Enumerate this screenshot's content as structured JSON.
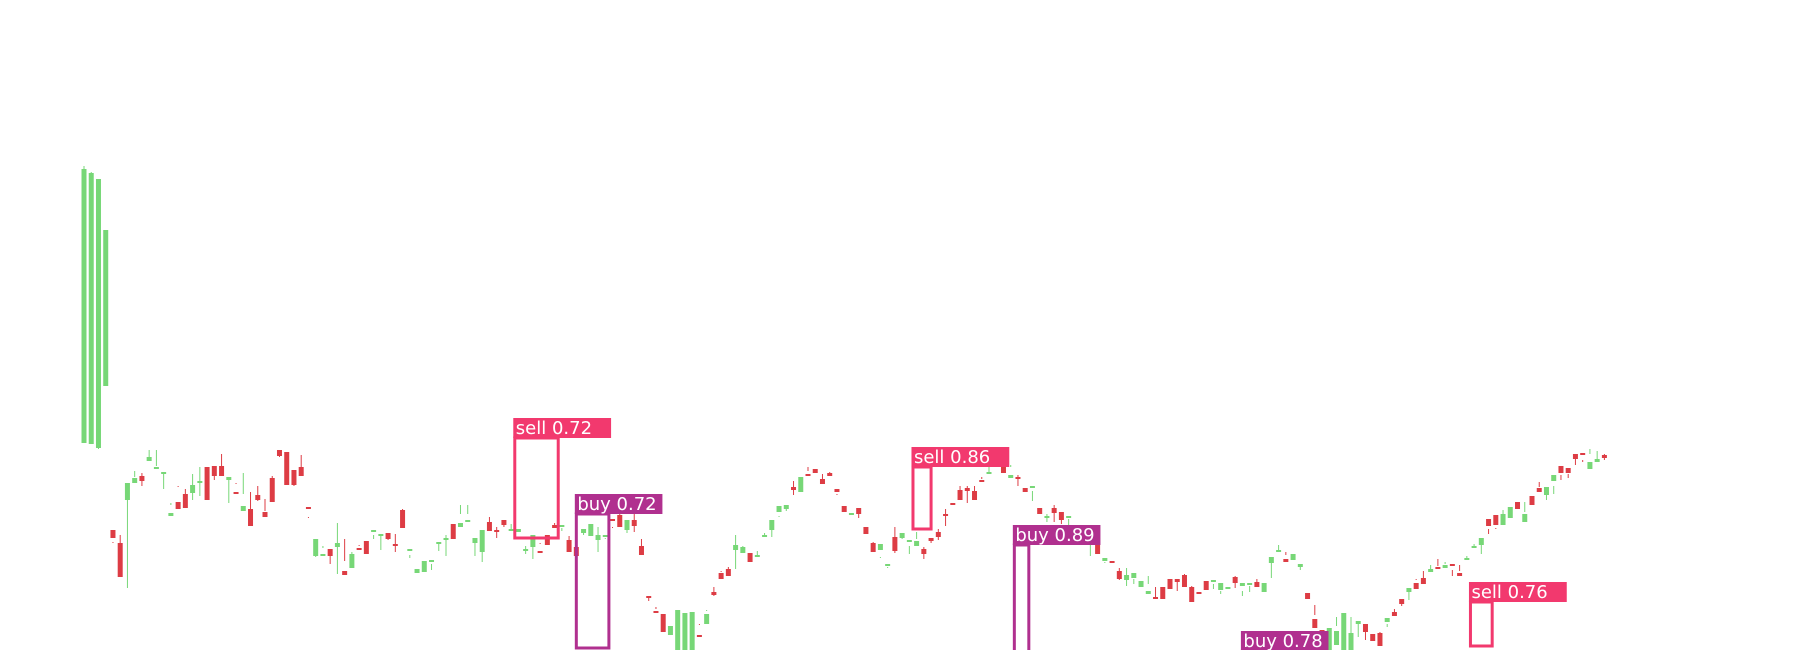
{
  "chart_data": {
    "type": "candlestick",
    "title": "",
    "xlabel": "",
    "ylabel": "",
    "axes_visible": false,
    "grid": false,
    "colors": {
      "up": "#77d777",
      "down": "#dd3c44",
      "sell": "#f2396e",
      "buy": "#b0308f"
    },
    "ylim": [
      0,
      650
    ],
    "candles": [
      [
        207,
        211,
        484,
        481
      ],
      [
        206,
        207,
        478,
        477
      ],
      [
        202,
        201,
        471,
        471
      ],
      [
        264,
        264,
        419,
        420
      ],
      [
        120,
        107,
        108,
        112
      ],
      [
        107,
        102,
        115,
        73
      ],
      [
        150,
        158,
        62,
        167
      ],
      [
        167,
        179,
        173,
        172
      ],
      [
        174,
        177,
        164,
        169
      ],
      [
        189,
        200,
        190,
        193
      ],
      [
        183,
        200,
        184,
        183
      ],
      [
        176,
        161,
        178,
        178
      ],
      [
        134,
        147,
        145,
        137
      ],
      [
        148,
        164,
        163,
        141
      ],
      [
        156,
        154,
        161,
        142
      ],
      [
        157,
        176,
        150,
        165
      ],
      [
        168,
        183,
        154,
        169
      ],
      [
        183,
        162,
        183,
        150
      ],
      [
        184,
        170,
        177,
        174
      ],
      [
        184,
        176,
        196,
        174
      ],
      [
        170,
        147,
        171,
        173
      ],
      [
        158,
        167,
        166,
        156
      ],
      [
        139,
        156,
        177,
        144
      ],
      [
        141,
        130,
        158,
        124
      ],
      [
        155,
        149,
        164,
        150
      ],
      [
        138,
        139,
        151,
        133
      ],
      [
        172,
        156,
        174,
        148
      ],
      [
        200,
        193,
        196,
        194
      ],
      [
        198,
        191,
        183,
        165
      ],
      [
        180,
        164,
        168,
        165
      ],
      [
        183,
        175,
        195,
        174
      ],
      [
        143,
        132,
        133,
        141
      ],
      [
        94,
        98,
        93,
        111
      ],
      [
        96,
        102,
        104,
        96
      ],
      [
        101,
        86,
        101,
        94
      ],
      [
        103,
        76,
        127,
        107
      ],
      [
        79,
        89,
        111,
        75
      ],
      [
        82,
        82,
        98,
        96
      ],
      [
        102,
        105,
        104,
        101
      ],
      [
        109,
        98,
        106,
        96
      ],
      [
        120,
        111,
        115,
        120
      ],
      [
        114,
        100,
        116,
        116
      ],
      [
        117,
        110,
        117,
        111
      ],
      [
        106,
        98,
        116,
        105
      ],
      [
        140,
        124,
        141,
        122
      ],
      [
        101,
        92,
        95,
        101
      ],
      [
        77,
        77,
        79,
        81
      ],
      [
        78,
        89,
        87,
        89
      ],
      [
        89,
        80,
        86,
        90
      ],
      [
        107,
        99,
        108,
        108
      ],
      [
        111,
        94,
        115,
        112
      ],
      [
        126,
        117,
        121,
        111
      ],
      [
        123,
        136,
        145,
        127
      ],
      [
        128,
        136,
        145,
        130
      ],
      [
        107,
        94,
        110,
        112
      ],
      [
        98,
        88,
        111,
        120
      ],
      [
        128,
        133,
        125,
        119
      ],
      [
        120,
        112,
        123,
        118
      ],
      [
        130,
        125,
        123,
        125
      ],
      [
        120,
        119,
        126,
        121
      ],
      [
        118,
        121,
        120,
        121
      ],
      [
        101,
        104,
        96,
        101
      ],
      [
        103,
        91,
        114,
        115
      ],
      [
        99,
        107,
        106,
        97
      ],
      [
        115,
        114,
        107,
        105
      ],
      [
        125,
        124,
        127,
        122
      ],
      [
        125,
        122,
        119,
        125
      ],
      [
        110,
        106,
        114,
        98
      ],
      [
        103,
        95,
        101,
        94
      ],
      [
        117,
        115,
        120,
        121
      ],
      [
        114,
        126,
        116,
        126
      ],
      [
        110,
        98,
        123,
        115
      ],
      [
        115,
        112,
        111,
        115
      ],
      [
        131,
        122,
        123,
        130
      ],
      [
        135,
        125,
        141,
        123
      ],
      [
        120,
        127,
        117,
        130
      ],
      [
        130,
        118,
        138,
        124
      ],
      [
        104,
        111,
        103,
        95
      ],
      [
        54,
        53,
        49,
        53
      ],
      [
        39,
        43,
        41,
        38
      ],
      [
        36,
        30,
        33,
        18
      ],
      [
        15,
        20,
        20,
        24
      ],
      [
        -3,
        18,
        30,
        40
      ],
      [
        -3,
        33,
        26,
        37
      ],
      [
        -28,
        10,
        25,
        38
      ],
      [
        15,
        26,
        25,
        14
      ],
      [
        26,
        39,
        40,
        36
      ],
      [
        58,
        54,
        63,
        55
      ],
      [
        77,
        78,
        79,
        71
      ],
      [
        81,
        76,
        83,
        74
      ],
      [
        100,
        81,
        115,
        105
      ],
      [
        97,
        104,
        103,
        103
      ],
      [
        97,
        93,
        97,
        88
      ],
      [
        94,
        94,
        99,
        95
      ],
      [
        115,
        117,
        113,
        115
      ],
      [
        120,
        113,
        128,
        130
      ],
      [
        138,
        134,
        133,
        144
      ],
      [
        141,
        139,
        144,
        145
      ],
      [
        163,
        155,
        169,
        160
      ],
      [
        158,
        163,
        162,
        173
      ],
      [
        176,
        183,
        179,
        175
      ],
      [
        181,
        172,
        172,
        177
      ],
      [
        171,
        167,
        176,
        166
      ],
      [
        177,
        178,
        176,
        174
      ],
      [
        161,
        155,
        156,
        158
      ],
      [
        144,
        147,
        147,
        138
      ],
      [
        136,
        135,
        136,
        137
      ],
      [
        142,
        132,
        139,
        136
      ],
      [
        123,
        118,
        118,
        116
      ],
      [
        107,
        107,
        108,
        98
      ],
      [
        100,
        93,
        92,
        106
      ],
      [
        86,
        82,
        83,
        86
      ],
      [
        113,
        97,
        123,
        99
      ],
      [
        112,
        116,
        111,
        117
      ],
      [
        109,
        96,
        104,
        110
      ],
      [
        104,
        118,
        111,
        109
      ],
      [
        101,
        91,
        103,
        96
      ],
      [
        112,
        112,
        107,
        109
      ],
      [
        118,
        110,
        121,
        113
      ],
      [
        136,
        124,
        141,
        135
      ],
      [
        147,
        138,
        138,
        146
      ],
      [
        160,
        159,
        164,
        150
      ],
      [
        162,
        147,
        164,
        159
      ],
      [
        159,
        151,
        164,
        150
      ],
      [
        170,
        171,
        173,
        168
      ],
      [
        178,
        183,
        176,
        178
      ],
      [
        191,
        190,
        193,
        190
      ],
      [
        184,
        190,
        187,
        177
      ],
      [
        172,
        183,
        185,
        175
      ],
      [
        173,
        164,
        175,
        172
      ],
      [
        162,
        160,
        161,
        158
      ],
      [
        163,
        149,
        159,
        164
      ],
      [
        142,
        137,
        142,
        136
      ],
      [
        134,
        136,
        128,
        134
      ],
      [
        142,
        128,
        145,
        137
      ],
      [
        138,
        138,
        126,
        130
      ],
      [
        133,
        131,
        122,
        134
      ],
      [
        115,
        124,
        124,
        106
      ],
      [
        118,
        106,
        119,
        112
      ],
      [
        106,
        94,
        111,
        108
      ],
      [
        112,
        116,
        99,
        96
      ],
      [
        89,
        87,
        88,
        92
      ],
      [
        89,
        78,
        78,
        88
      ],
      [
        79,
        70,
        82,
        71
      ],
      [
        70,
        82,
        64,
        75
      ],
      [
        72,
        71,
        66,
        77
      ],
      [
        63,
        63,
        69,
        69
      ],
      [
        56,
        66,
        74,
        59
      ],
      [
        53,
        53,
        63,
        52
      ],
      [
        63,
        62,
        55,
        51
      ],
      [
        71,
        71,
        64,
        61
      ],
      [
        71,
        70,
        59,
        68
      ],
      [
        75,
        70,
        76,
        63
      ],
      [
        63,
        63,
        64,
        48
      ],
      [
        58,
        57,
        58,
        57
      ],
      [
        69,
        67,
        63,
        60
      ],
      [
        68,
        61,
        66,
        70
      ],
      [
        60,
        59,
        56,
        67
      ],
      [
        62,
        61,
        62,
        63
      ],
      [
        73,
        62,
        74,
        67
      ],
      [
        64,
        59,
        54,
        67
      ],
      [
        67,
        58,
        64,
        67
      ],
      [
        68,
        64,
        71,
        63
      ],
      [
        58,
        62,
        58,
        67
      ],
      [
        87,
        72,
        92,
        93
      ],
      [
        99,
        98,
        105,
        100
      ],
      [
        91,
        95,
        98,
        88
      ],
      [
        90,
        90,
        92,
        96
      ],
      [
        83,
        80,
        84,
        86
      ],
      [
        57,
        57,
        54,
        51
      ],
      [
        31,
        45,
        35,
        22
      ],
      [
        20,
        20,
        7,
        11
      ],
      [
        -2,
        17,
        13,
        22
      ],
      [
        5,
        33,
        24,
        19
      ],
      [
        -19,
        29,
        25,
        37
      ],
      [
        -23,
        33,
        16,
        17
      ],
      [
        26,
        13,
        29,
        29
      ],
      [
        26,
        26,
        10,
        18
      ],
      [
        16,
        8,
        8,
        9
      ],
      [
        17,
        18,
        14,
        4
      ],
      [
        28,
        26,
        23,
        32
      ],
      [
        38,
        34,
        41,
        34
      ],
      [
        51,
        44,
        47,
        46
      ],
      [
        58,
        58,
        50,
        62
      ],
      [
        67,
        70,
        71,
        61
      ],
      [
        72,
        67,
        79,
        66
      ],
      [
        78,
        85,
        80,
        81
      ],
      [
        83,
        91,
        84,
        81
      ],
      [
        82,
        88,
        86,
        85
      ],
      [
        86,
        74,
        80,
        85
      ],
      [
        77,
        85,
        79,
        74
      ],
      [
        92,
        94,
        90,
        92
      ],
      [
        102,
        102,
        106,
        104
      ],
      [
        105,
        107,
        96,
        112
      ],
      [
        131,
        121,
        116,
        124
      ],
      [
        135,
        121,
        122,
        125
      ],
      [
        125,
        140,
        125,
        136
      ],
      [
        132,
        136,
        141,
        143
      ],
      [
        148,
        147,
        142,
        141
      ],
      [
        128,
        148,
        138,
        136
      ],
      [
        154,
        148,
        154,
        145
      ],
      [
        162,
        163,
        168,
        158
      ],
      [
        155,
        163,
        150,
        163
      ],
      [
        169,
        156,
        164,
        175
      ],
      [
        184,
        170,
        175,
        177
      ],
      [
        182,
        172,
        176,
        177
      ],
      [
        196,
        185,
        191,
        191
      ],
      [
        197,
        190,
        188,
        195
      ],
      [
        181,
        196,
        201,
        188
      ],
      [
        188,
        199,
        191,
        191
      ],
      [
        195,
        196,
        190,
        192
      ]
    ],
    "detections": [
      {
        "label": "sell 0.72",
        "kind": "sell",
        "x_range": [
          59.5,
          65.5
        ],
        "y_range": [
          112,
          212
        ]
      },
      {
        "label": "buy 0.72",
        "kind": "buy",
        "x_range": [
          68,
          72.5
        ],
        "y_range": [
          2,
          136
        ]
      },
      {
        "label": "sell 0.86",
        "kind": "sell",
        "x_range": [
          114.5,
          117
        ],
        "y_range": [
          121,
          183
        ]
      },
      {
        "label": "buy 0.89",
        "kind": "buy",
        "x_range": [
          128.5,
          130.5
        ],
        "y_range": [
          -30,
          105
        ]
      },
      {
        "label": "buy 0.78",
        "kind": "buy",
        "x_range": [
          160,
          163
        ],
        "y_range": [
          -28,
          -1
        ]
      },
      {
        "label": "sell 0.76",
        "kind": "sell",
        "x_range": [
          191.5,
          194.5
        ],
        "y_range": [
          4,
          48
        ]
      }
    ]
  }
}
